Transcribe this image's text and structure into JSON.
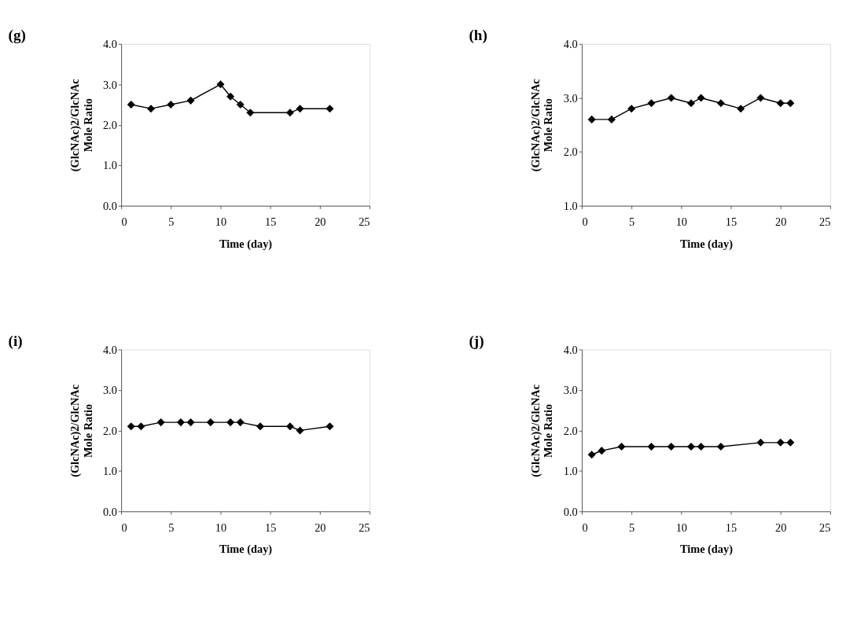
{
  "chart_data": [
    {
      "type": "line",
      "title": "(g)",
      "xlabel": "Time (day)",
      "ylabel": "(GlcNAc)2/GlcNAc\nMole Ratio",
      "marker": "diamond",
      "grid": false,
      "xlim": [
        0,
        25
      ],
      "xticks": [
        0,
        5,
        10,
        15,
        20,
        25
      ],
      "ylim": [
        0,
        4
      ],
      "yticks": [
        {
          "value": 0,
          "label": "0.0"
        },
        {
          "value": 1,
          "label": "1.0"
        },
        {
          "value": 2,
          "label": "2.0"
        },
        {
          "value": 3,
          "label": "3.0"
        },
        {
          "value": 4,
          "label": "4.0"
        }
      ],
      "series": [
        {
          "color": "#000000",
          "x": [
            1,
            3,
            5,
            7,
            10,
            11,
            12,
            13,
            17,
            18,
            21
          ],
          "values": [
            2.5,
            2.4,
            2.5,
            2.6,
            3.0,
            2.7,
            2.5,
            2.3,
            2.3,
            2.4,
            2.4
          ]
        }
      ]
    },
    {
      "type": "line",
      "title": "(h)",
      "xlabel": "Time (day)",
      "ylabel": "(GlcNAc)2/GlcNAc\nMole Ratio",
      "marker": "diamond",
      "grid": false,
      "xlim": [
        0,
        25
      ],
      "xticks": [
        0,
        5,
        10,
        15,
        20,
        25
      ],
      "ylim": [
        1,
        4
      ],
      "yticks": [
        {
          "value": 1,
          "label": "1.0"
        },
        {
          "value": 2,
          "label": "2.0"
        },
        {
          "value": 3,
          "label": "3.0"
        },
        {
          "value": 4,
          "label": "4.0"
        }
      ],
      "series": [
        {
          "color": "#000000",
          "x": [
            1,
            3,
            5,
            7,
            9,
            11,
            12,
            14,
            16,
            18,
            20,
            21
          ],
          "values": [
            2.6,
            2.6,
            2.8,
            2.9,
            3.0,
            2.9,
            3.0,
            2.9,
            2.8,
            3.0,
            2.9,
            2.9
          ]
        }
      ]
    },
    {
      "type": "line",
      "title": "(i)",
      "xlabel": "Time (day)",
      "ylabel": "(GlcNAc)2/GlcNAc\nMole Ratio",
      "marker": "diamond",
      "grid": false,
      "xlim": [
        0,
        25
      ],
      "xticks": [
        0,
        5,
        10,
        15,
        20,
        25
      ],
      "ylim": [
        0,
        4
      ],
      "yticks": [
        {
          "value": 0,
          "label": "0.0"
        },
        {
          "value": 1,
          "label": "1.0"
        },
        {
          "value": 2,
          "label": "2.0"
        },
        {
          "value": 3,
          "label": "3.0"
        },
        {
          "value": 4,
          "label": "4.0"
        }
      ],
      "series": [
        {
          "color": "#000000",
          "x": [
            1,
            2,
            4,
            6,
            7,
            9,
            11,
            12,
            14,
            17,
            18,
            21
          ],
          "values": [
            2.1,
            2.1,
            2.2,
            2.2,
            2.2,
            2.2,
            2.2,
            2.2,
            2.1,
            2.1,
            2.0,
            2.1
          ]
        }
      ]
    },
    {
      "type": "line",
      "title": "(j)",
      "xlabel": "Time (day)",
      "ylabel": "(GlcNAc)2/GlcNAc\nMole Ratio",
      "marker": "diamond",
      "grid": false,
      "xlim": [
        0,
        25
      ],
      "xticks": [
        0,
        5,
        10,
        15,
        20,
        25
      ],
      "ylim": [
        0,
        4
      ],
      "yticks": [
        {
          "value": 0,
          "label": "0.0"
        },
        {
          "value": 1,
          "label": "1.0"
        },
        {
          "value": 2,
          "label": "2.0"
        },
        {
          "value": 3,
          "label": "3.0"
        },
        {
          "value": 4,
          "label": "4.0"
        }
      ],
      "series": [
        {
          "color": "#000000",
          "x": [
            1,
            2,
            4,
            7,
            9,
            11,
            12,
            14,
            18,
            20,
            21
          ],
          "values": [
            1.4,
            1.5,
            1.6,
            1.6,
            1.6,
            1.6,
            1.6,
            1.6,
            1.7,
            1.7,
            1.7
          ]
        }
      ]
    }
  ]
}
